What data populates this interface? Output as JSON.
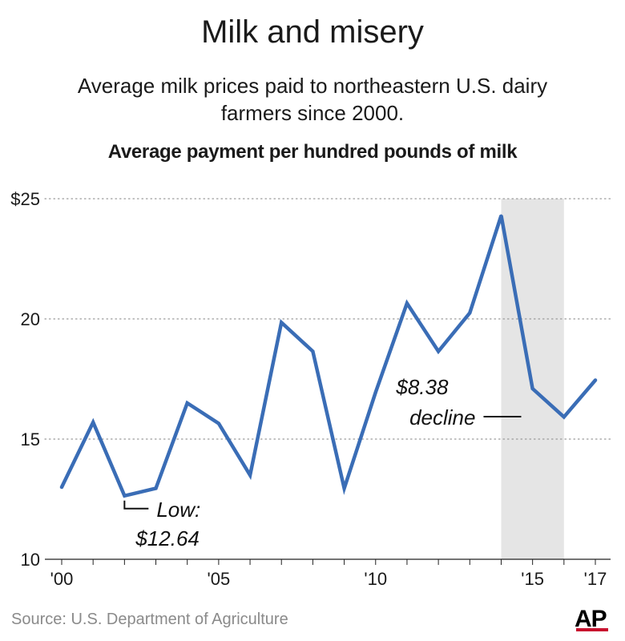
{
  "header": {
    "title": "Milk and misery",
    "subtitle": "Average milk prices paid to northeastern U.S. dairy farmers since 2000."
  },
  "footer": {
    "source": "Source: U.S. Department of Agriculture",
    "logo": "AP"
  },
  "colors": {
    "line": "#3a6db6",
    "highlight": "#e5e5e5",
    "grid": "#9a9a9a",
    "logo_accent": "#c8102e"
  },
  "chart_data": {
    "type": "line",
    "title": "Average payment per hundred pounds of milk",
    "x": [
      2000,
      2001,
      2002,
      2003,
      2004,
      2005,
      2006,
      2007,
      2008,
      2009,
      2010,
      2011,
      2012,
      2013,
      2014,
      2015,
      2016,
      2017
    ],
    "series": [
      {
        "values": [
          13.0,
          15.7,
          12.64,
          12.95,
          16.5,
          15.65,
          13.5,
          19.85,
          18.65,
          12.95,
          16.95,
          20.65,
          18.65,
          20.25,
          24.3,
          17.1,
          15.92,
          17.45
        ]
      }
    ],
    "ylim": [
      10,
      25
    ],
    "yticks": [
      {
        "value": 25,
        "label": "$25"
      },
      {
        "value": 20,
        "label": "20"
      },
      {
        "value": 15,
        "label": "15"
      },
      {
        "value": 10,
        "label": "10"
      }
    ],
    "xticks": [
      {
        "value": 2000,
        "label": "'00"
      },
      {
        "value": 2005,
        "label": "'05"
      },
      {
        "value": 2010,
        "label": "'10"
      },
      {
        "value": 2015,
        "label": "'15"
      },
      {
        "value": 2017,
        "label": "'17"
      }
    ],
    "grid": "horizontal dotted",
    "highlight": {
      "from": 2014,
      "to": 2016
    },
    "annotations": [
      {
        "x": 2002,
        "y": 12.64,
        "lines": [
          "Low:",
          "$12.64"
        ]
      },
      {
        "x": 2014,
        "y": 24.3,
        "lines": [
          "$8.38",
          "decline"
        ]
      }
    ]
  }
}
